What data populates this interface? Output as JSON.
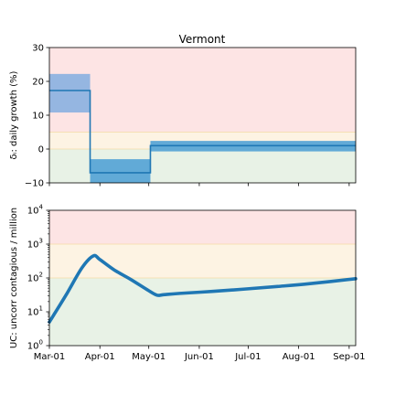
{
  "colors": {
    "red_zone": "#fde4e4",
    "yellow_zone": "#fdf3e3",
    "green_zone": "#e8f2e6",
    "band_light": "#5aa5d6",
    "band_mid": "#8fb3e0",
    "line": "#1f77b4",
    "ref_line": "#f3dba5"
  },
  "chart_data": [
    {
      "type": "line",
      "title": "Vermont",
      "ylabel": "δᵢ: daily growth (%)",
      "ylim": [
        -10,
        30
      ],
      "yticks": [
        -10,
        0,
        10,
        20,
        30
      ],
      "ytick_labels": [
        "−10",
        "0",
        "10",
        "20",
        "30"
      ],
      "xlim_days": [
        0,
        188
      ],
      "zones": [
        {
          "name": "red",
          "from": 5,
          "to": 30
        },
        {
          "name": "yellow",
          "from": 0,
          "to": 5
        },
        {
          "name": "green",
          "from": -10,
          "to": 0
        }
      ],
      "segments": [
        {
          "start_day": 0,
          "end_day": 25,
          "value": 17.3,
          "low": 10.8,
          "high": 22.2
        },
        {
          "start_day": 25,
          "end_day": 62,
          "value": -7.0,
          "low": -10,
          "high": -3.0
        },
        {
          "start_day": 62,
          "end_day": 188,
          "value": 1.0,
          "low": -0.7,
          "high": 2.4
        }
      ]
    },
    {
      "type": "line",
      "ylabel": "UC: uncorr contagious / million",
      "yscale": "log",
      "ylim": [
        1,
        10000
      ],
      "ytick_exponents": [
        "0",
        "1",
        "2",
        "3",
        "4"
      ],
      "xlim_days": [
        0,
        188
      ],
      "zones": [
        {
          "name": "red",
          "from": 1000,
          "to": 10000
        },
        {
          "name": "yellow",
          "from": 100,
          "to": 1000
        },
        {
          "name": "green",
          "from": 1,
          "to": 100
        }
      ],
      "x_day": [
        0,
        10,
        20,
        27,
        31,
        40,
        50,
        60,
        66,
        70,
        80,
        100,
        120,
        140,
        160,
        188
      ],
      "y_values": [
        5,
        30,
        200,
        450,
        350,
        170,
        90,
        45,
        31,
        32,
        35,
        40,
        47,
        56,
        68,
        95
      ]
    }
  ],
  "x_axis": {
    "tick_days": [
      0,
      31,
      61,
      92,
      122,
      153,
      184
    ],
    "tick_labels": [
      "Mar-01",
      "Apr-01",
      "May-01",
      "Jun-01",
      "Jul-01",
      "Aug-01",
      "Sep-01"
    ]
  }
}
